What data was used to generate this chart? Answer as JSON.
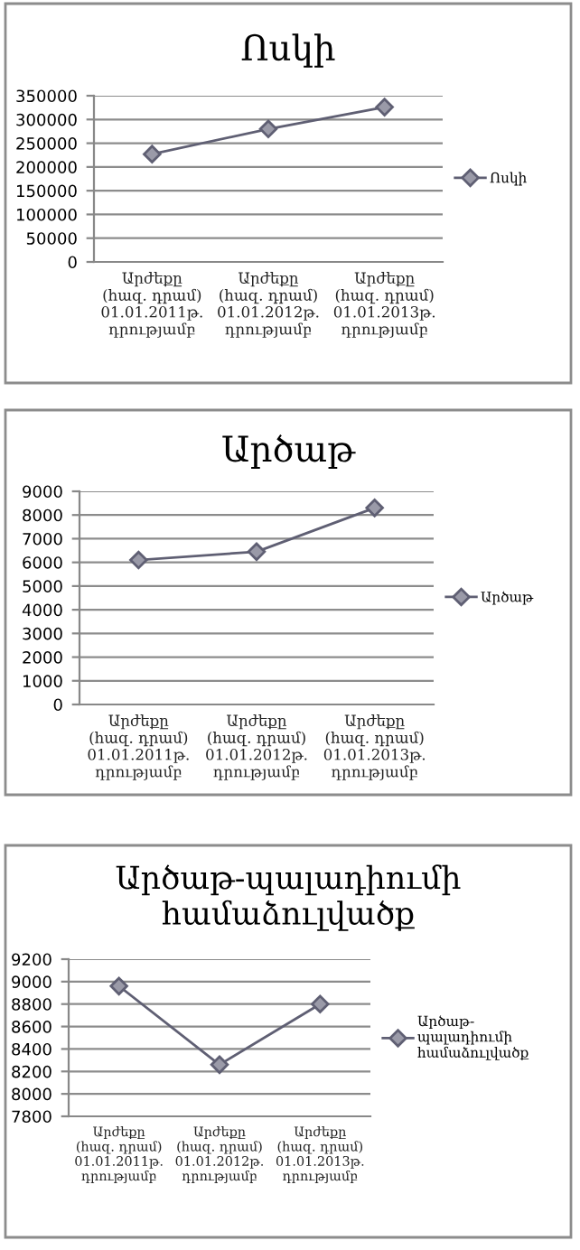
{
  "chart_data": [
    {
      "type": "line",
      "title": "Ոսկի",
      "categories": [
        "Արժեքը\n(հազ. դրամ)\n01.01.2011թ.\nդրությամբ",
        "Արժեքը\n(հազ. դրամ)\n01.01.2012թ.\nդրությամբ",
        "Արժեքը\n(հազ. դրամ)\n01.01.2013թ.\nդրությամբ"
      ],
      "series": [
        {
          "name": "Ոսկի",
          "color": "#5f5f73",
          "values": [
            227000,
            280000,
            326000
          ]
        }
      ],
      "ylim": [
        0,
        350000
      ],
      "yticks": [
        0,
        50000,
        100000,
        150000,
        200000,
        250000,
        300000,
        350000
      ],
      "grid": "y",
      "legend": "right",
      "marker": "diamond",
      "line_style": "solid"
    },
    {
      "type": "line",
      "title": "Արծաթ",
      "categories": [
        "Արժեքը\n(հազ. դրամ)\n01.01.2011թ.\nդրությամբ",
        "Արժեքը\n(հազ. դրամ)\n01.01.2012թ.\nդրությամբ",
        "Արժեքը\n(հազ. դրամ)\n01.01.2013թ.\nդրությամբ"
      ],
      "series": [
        {
          "name": "Արծաթ",
          "color": "#5f5f73",
          "values": [
            6100,
            6450,
            8300
          ]
        }
      ],
      "ylim": [
        0,
        9000
      ],
      "yticks": [
        0,
        1000,
        2000,
        3000,
        4000,
        5000,
        6000,
        7000,
        8000,
        9000
      ],
      "grid": "y",
      "legend": "right",
      "marker": "diamond",
      "line_style": "solid"
    },
    {
      "type": "line",
      "title": "Արծաթ-պալադիումի\nհամաձուլվածք",
      "categories": [
        "Արժեքը\n(հազ. դրամ)\n01.01.2011թ.\nդրությամբ",
        "Արժեքը\n(հազ. դրամ)\n01.01.2012թ.\nդրությամբ",
        "Արժեքը\n(հազ. դրամ)\n01.01.2013թ.\nդրությամբ"
      ],
      "series": [
        {
          "name": "Արծաթ-\nպալադիումի\nհամաձուլվածք",
          "color": "#5f5f73",
          "values": [
            8960,
            8260,
            8800
          ]
        }
      ],
      "ylim": [
        7800,
        9200
      ],
      "yticks": [
        7800,
        8000,
        8200,
        8400,
        8600,
        8800,
        9000,
        9200
      ],
      "grid": "y",
      "legend": "right",
      "marker": "diamond",
      "line_style": "solid"
    }
  ]
}
